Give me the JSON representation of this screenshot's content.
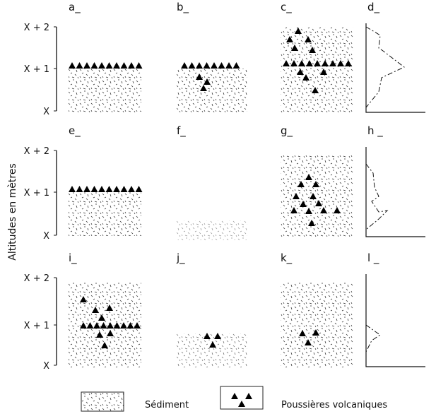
{
  "axis_title": "Altitudes en mètres",
  "rows": [
    {
      "ticks": [
        "X + 2",
        "X + 1",
        "X"
      ],
      "panels": [
        "a_",
        "b_",
        "c_",
        "d_"
      ]
    },
    {
      "ticks": [
        "X + 2",
        "X + 1",
        "X"
      ],
      "panels": [
        "e_",
        "f_",
        "g_",
        "h _"
      ]
    },
    {
      "ticks": [
        "X + 2",
        "X + 1",
        "X"
      ],
      "panels": [
        "i_",
        "j_",
        "k_",
        "l _"
      ]
    }
  ],
  "legend": {
    "sediment": "Sédiment",
    "volcanic": "Poussières volcaniques"
  }
}
